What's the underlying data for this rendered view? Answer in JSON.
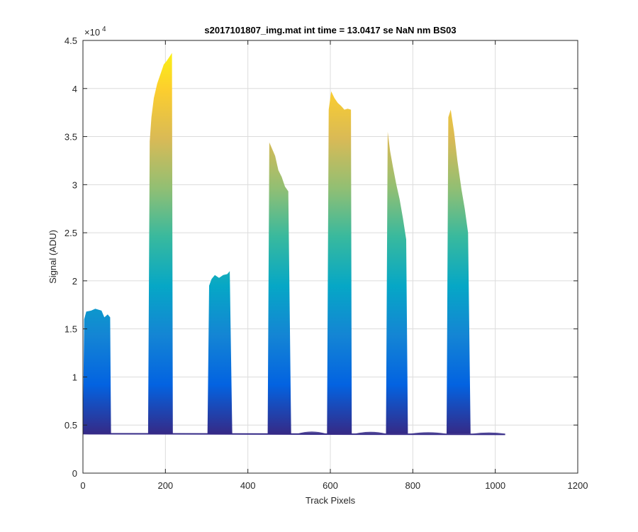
{
  "chart_data": {
    "type": "line",
    "title": "s2017101807_img.mat int time = 13.0417 se  NaN nm BS03",
    "xlabel": "Track Pixels",
    "ylabel": "Signal (ADU)",
    "xlim": [
      0,
      1200
    ],
    "ylim": [
      0,
      45000
    ],
    "xticks": [
      0,
      200,
      400,
      600,
      800,
      1000,
      1200
    ],
    "xtick_labels": [
      "0",
      "200",
      "400",
      "600",
      "800",
      "1000",
      "1200"
    ],
    "yticks": [
      0,
      5000,
      10000,
      15000,
      20000,
      25000,
      30000,
      35000,
      40000,
      45000
    ],
    "ytick_labels": [
      "0",
      "0.5",
      "1",
      "1.5",
      "2",
      "2.5",
      "3",
      "3.5",
      "4",
      "4.5"
    ],
    "y_exponent_label": "×10",
    "y_exponent_power": "4",
    "grid": true,
    "colormap": "parula",
    "colormap_colors": [
      "#352a87",
      "#0363e1",
      "#1485d4",
      "#06a7c6",
      "#38b99e",
      "#92bf73",
      "#d9ba56",
      "#fcce2e",
      "#f9fb0e"
    ],
    "baseline": 4100,
    "x_extent": [
      0,
      1024
    ],
    "bands": [
      {
        "x_start": 0,
        "x_end": 68,
        "peak": 17100,
        "profile": [
          [
            0,
            4200
          ],
          [
            3,
            16000
          ],
          [
            8,
            16800
          ],
          [
            20,
            16900
          ],
          [
            30,
            17100
          ],
          [
            45,
            16900
          ],
          [
            52,
            16200
          ],
          [
            60,
            16500
          ],
          [
            66,
            16200
          ],
          [
            68,
            4200
          ]
        ]
      },
      {
        "x_start": 158,
        "x_end": 218,
        "peak": 43700,
        "profile": [
          [
            158,
            4300
          ],
          [
            162,
            34500
          ],
          [
            166,
            37000
          ],
          [
            172,
            39000
          ],
          [
            180,
            40500
          ],
          [
            188,
            41500
          ],
          [
            196,
            42500
          ],
          [
            202,
            42800
          ],
          [
            210,
            43300
          ],
          [
            216,
            43700
          ],
          [
            218,
            4300
          ]
        ]
      },
      {
        "x_start": 302,
        "x_end": 362,
        "peak": 21000,
        "profile": [
          [
            302,
            4200
          ],
          [
            306,
            19500
          ],
          [
            312,
            20200
          ],
          [
            320,
            20600
          ],
          [
            330,
            20300
          ],
          [
            340,
            20600
          ],
          [
            350,
            20700
          ],
          [
            356,
            21000
          ],
          [
            362,
            4200
          ]
        ]
      },
      {
        "x_start": 448,
        "x_end": 505,
        "peak": 34400,
        "profile": [
          [
            448,
            4200
          ],
          [
            452,
            34400
          ],
          [
            458,
            33800
          ],
          [
            466,
            33000
          ],
          [
            474,
            31500
          ],
          [
            482,
            30800
          ],
          [
            490,
            29800
          ],
          [
            498,
            29300
          ],
          [
            505,
            4200
          ]
        ]
      },
      {
        "x_start": 592,
        "x_end": 652,
        "peak": 39700,
        "profile": [
          [
            592,
            4200
          ],
          [
            596,
            37800
          ],
          [
            602,
            39700
          ],
          [
            610,
            39000
          ],
          [
            618,
            38500
          ],
          [
            626,
            38200
          ],
          [
            634,
            37800
          ],
          [
            642,
            37900
          ],
          [
            650,
            37800
          ],
          [
            652,
            4200
          ]
        ]
      },
      {
        "x_start": 735,
        "x_end": 788,
        "peak": 35500,
        "profile": [
          [
            735,
            4200
          ],
          [
            739,
            35500
          ],
          [
            745,
            33500
          ],
          [
            752,
            31800
          ],
          [
            760,
            30000
          ],
          [
            768,
            28500
          ],
          [
            776,
            26500
          ],
          [
            784,
            24300
          ],
          [
            788,
            4200
          ]
        ]
      },
      {
        "x_start": 882,
        "x_end": 940,
        "peak": 37800,
        "profile": [
          [
            882,
            4200
          ],
          [
            886,
            37000
          ],
          [
            892,
            37800
          ],
          [
            900,
            35500
          ],
          [
            908,
            32500
          ],
          [
            918,
            29500
          ],
          [
            926,
            27500
          ],
          [
            934,
            25000
          ],
          [
            940,
            4200
          ]
        ]
      }
    ],
    "bump_regions": [
      {
        "x_start": 520,
        "x_end": 590,
        "peak": 4550
      },
      {
        "x_start": 660,
        "x_end": 735,
        "peak": 4500
      },
      {
        "x_start": 795,
        "x_end": 880,
        "peak": 4400
      },
      {
        "x_start": 945,
        "x_end": 1024,
        "peak": 4350
      }
    ]
  }
}
